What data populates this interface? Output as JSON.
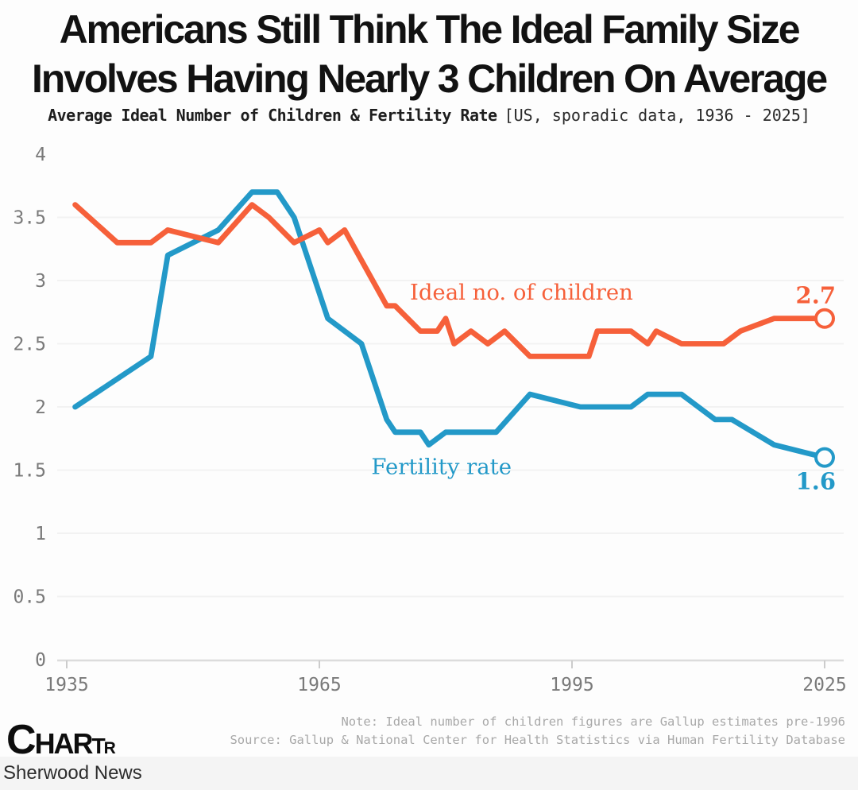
{
  "header": {
    "title_line1": "Americans Still Think The Ideal Family Size",
    "title_line2": "Involves Having Nearly 3 Children On Average",
    "subtitle_main": "Average Ideal Number of Children & Fertility Rate",
    "subtitle_detail": "[US, sporadic data, 1936 - 2025]"
  },
  "chart_data": {
    "type": "line",
    "title": "Americans Still Think The Ideal Family Size Involves Having Nearly 3 Children On Average",
    "subtitle": "Average Ideal Number of Children & Fertility Rate [US, sporadic data, 1936 - 2025]",
    "xlabel": "",
    "ylabel": "",
    "xlim": [
      1935,
      2025
    ],
    "ylim": [
      0,
      4
    ],
    "grid": "horizontal",
    "legend_position": "inline-annotations",
    "x_ticks": [
      "1935",
      "1965",
      "1995",
      "2025"
    ],
    "y_ticks": [
      "4",
      "3.5",
      "3",
      "2.5",
      "2",
      "1.5",
      "1",
      "0.5",
      "0"
    ],
    "series": [
      {
        "id": "ideal-children",
        "name": "Ideal no. of children",
        "color": "#F6603A",
        "end_label": "2.7",
        "end_label_side": "above",
        "inline_label": {
          "text": "Ideal no. of children",
          "year": 1989,
          "value": 2.85
        },
        "points": [
          [
            1936,
            3.6
          ],
          [
            1941,
            3.3
          ],
          [
            1945,
            3.3
          ],
          [
            1947,
            3.4
          ],
          [
            1953,
            3.3
          ],
          [
            1957,
            3.6
          ],
          [
            1959,
            3.5
          ],
          [
            1962,
            3.3
          ],
          [
            1965,
            3.4
          ],
          [
            1966,
            3.3
          ],
          [
            1968,
            3.4
          ],
          [
            1973,
            2.8
          ],
          [
            1974,
            2.8
          ],
          [
            1977,
            2.6
          ],
          [
            1979,
            2.6
          ],
          [
            1980,
            2.7
          ],
          [
            1981,
            2.5
          ],
          [
            1983,
            2.6
          ],
          [
            1985,
            2.5
          ],
          [
            1987,
            2.6
          ],
          [
            1990,
            2.4
          ],
          [
            1997,
            2.4
          ],
          [
            1998,
            2.6
          ],
          [
            2002,
            2.6
          ],
          [
            2004,
            2.5
          ],
          [
            2005,
            2.6
          ],
          [
            2008,
            2.5
          ],
          [
            2013,
            2.5
          ],
          [
            2015,
            2.6
          ],
          [
            2019,
            2.7
          ],
          [
            2025,
            2.7
          ]
        ]
      },
      {
        "id": "fertility-rate",
        "name": "Fertility rate",
        "color": "#2399C8",
        "end_label": "1.6",
        "end_label_side": "below",
        "inline_label": {
          "text": "Fertility rate",
          "year": 1979.5,
          "value": 1.47
        },
        "points": [
          [
            1936,
            2.0
          ],
          [
            1945,
            2.4
          ],
          [
            1947,
            3.2
          ],
          [
            1953,
            3.4
          ],
          [
            1957,
            3.7
          ],
          [
            1960,
            3.7
          ],
          [
            1962,
            3.5
          ],
          [
            1966,
            2.7
          ],
          [
            1970,
            2.5
          ],
          [
            1973,
            1.9
          ],
          [
            1974,
            1.8
          ],
          [
            1977,
            1.8
          ],
          [
            1978,
            1.7
          ],
          [
            1980,
            1.8
          ],
          [
            1986,
            1.8
          ],
          [
            1990,
            2.1
          ],
          [
            1996,
            2.0
          ],
          [
            2002,
            2.0
          ],
          [
            2004,
            2.1
          ],
          [
            2008,
            2.1
          ],
          [
            2012,
            1.9
          ],
          [
            2014,
            1.9
          ],
          [
            2019,
            1.7
          ],
          [
            2025,
            1.6
          ]
        ]
      }
    ]
  },
  "footer": {
    "logo_segments": [
      "C",
      "HAR",
      "T",
      "R"
    ],
    "note": "Note: Ideal number of children figures are Gallup estimates pre-1996",
    "source": "Source: Gallup & National Center for Health Statistics via Human Fertility Database"
  },
  "bottom_bar": {
    "label": "Sherwood News"
  }
}
